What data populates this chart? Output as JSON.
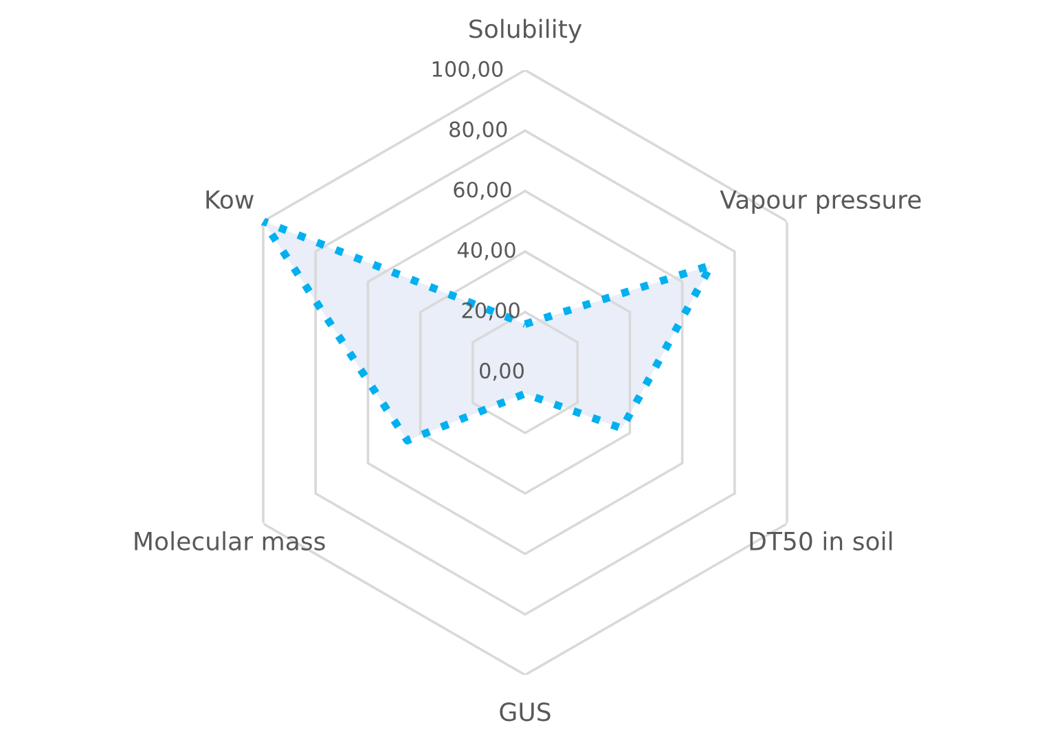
{
  "chart_data": {
    "type": "radar",
    "categories": [
      "Solubility",
      "Vapour pressure",
      "DT50 in soil",
      "GUS",
      "Molecular mass",
      "Kow"
    ],
    "series": [
      {
        "color": "#00b0f0",
        "values": [
          16,
          71,
          37,
          7,
          45,
          100
        ]
      }
    ],
    "ylim": [
      0,
      100
    ],
    "yticks": [
      {
        "value": 0,
        "label": "0,00"
      },
      {
        "value": 20,
        "label": "20,00"
      },
      {
        "value": 40,
        "label": "40,00"
      },
      {
        "value": 60,
        "label": "60,00"
      },
      {
        "value": 80,
        "label": "80,00"
      },
      {
        "value": 100,
        "label": "100,00"
      }
    ],
    "grid": true,
    "line_style": "dotted",
    "marker": "none"
  }
}
